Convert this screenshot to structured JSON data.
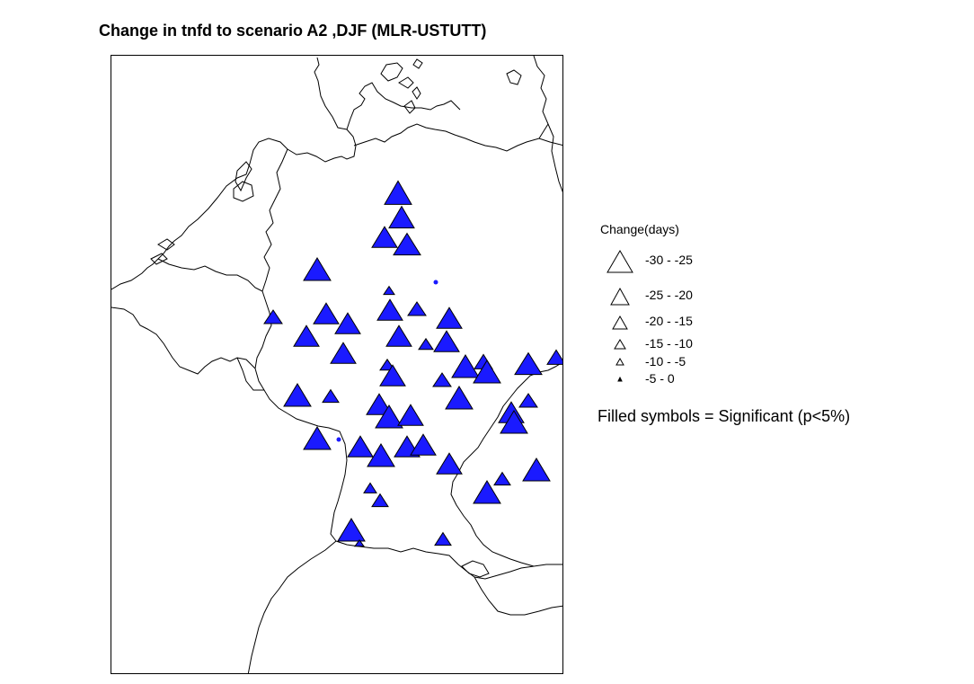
{
  "title": "Change in tnfd to scenario A2 ,DJF (MLR-USTUTT)",
  "colors": {
    "fill": "#1a1aff",
    "stroke": "#000000",
    "border": "#000000"
  },
  "legend": {
    "title": "Change(days)",
    "classes": [
      {
        "label": "-30 - -25",
        "size": "xl"
      },
      {
        "label": "-25 - -20",
        "size": "l"
      },
      {
        "label": "-20 - -15",
        "size": "m"
      },
      {
        "label": "-15 - -10",
        "size": "s"
      },
      {
        "label": "-10 - -5",
        "size": "xs"
      },
      {
        "label": "-5 - 0",
        "size": "xxs"
      }
    ]
  },
  "note": "Filled symbols = Significant (p<5%)"
}
